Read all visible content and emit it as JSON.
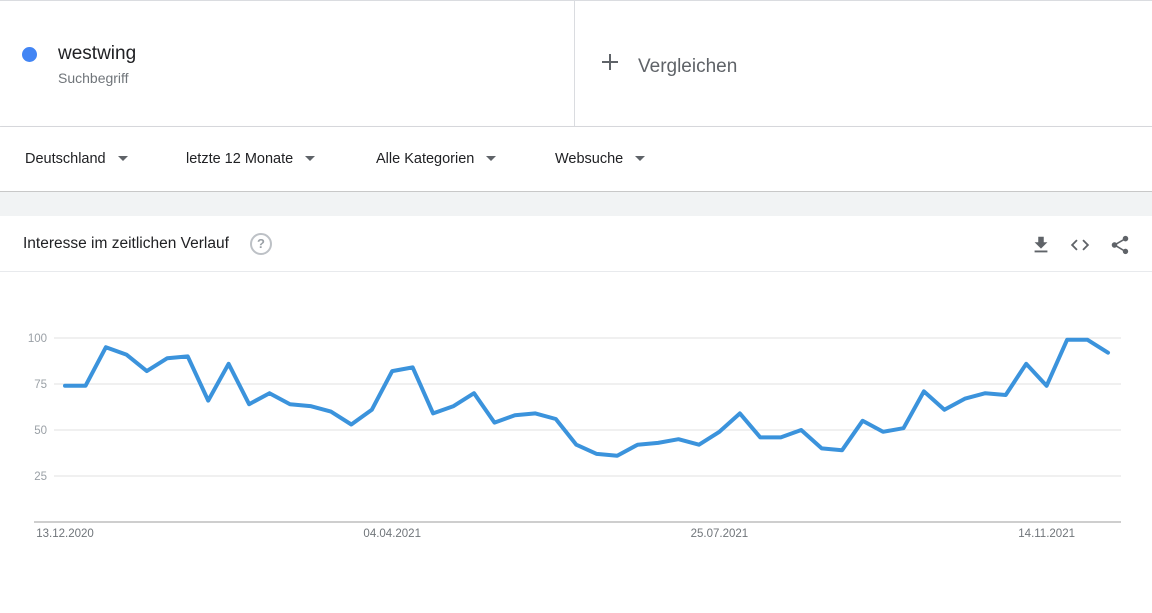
{
  "term": {
    "name": "westwing",
    "type": "Suchbegriff",
    "color": "#4285f4"
  },
  "compare": {
    "label": "Vergleichen"
  },
  "filters": [
    {
      "label": "Deutschland"
    },
    {
      "label": "letzte 12 Monate"
    },
    {
      "label": "Alle Kategorien"
    },
    {
      "label": "Websuche"
    }
  ],
  "card": {
    "title": "Interesse im zeitlichen Verlauf",
    "help": "?",
    "actions": [
      "download-icon",
      "embed-code-icon",
      "share-icon"
    ]
  },
  "chart_data": {
    "type": "line",
    "line_color": "#3b93dc",
    "y_ticks": [
      "100",
      "75",
      "50",
      "25"
    ],
    "x_tick_labels": [
      "13.12.2020",
      "04.04.2021",
      "25.07.2021",
      "14.11.2021"
    ],
    "ylim": [
      0,
      100
    ],
    "grid": true,
    "series": [
      {
        "values": [
          74,
          74,
          95,
          91,
          82,
          89,
          90,
          66,
          86,
          64,
          70,
          64,
          63,
          60,
          53,
          61,
          82,
          84,
          59,
          63,
          70,
          54,
          58,
          59,
          56,
          42,
          37,
          36,
          42,
          43,
          45,
          42,
          49,
          59,
          46,
          46,
          50,
          40,
          39,
          55,
          49,
          51,
          71,
          61,
          67,
          70,
          69,
          86,
          74,
          99,
          99,
          92
        ]
      }
    ]
  }
}
